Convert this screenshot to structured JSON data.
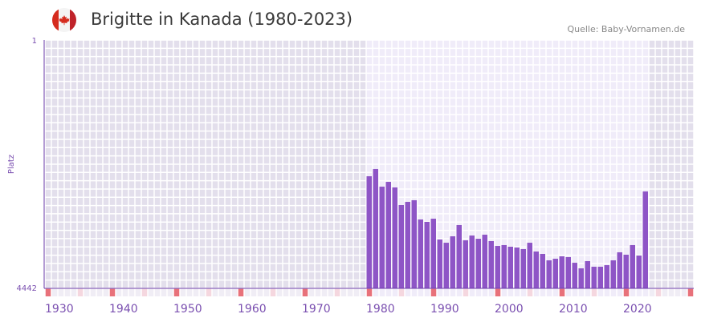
{
  "header": {
    "title": "Brigitte in Kanada (1980-2023)",
    "source": "Quelle: Baby-Vornamen.de",
    "flag_icon": "canada-flag-icon"
  },
  "colors": {
    "bar": "#8e55c6",
    "outside": "#e3dfec",
    "inside": "#f0ecf9",
    "axis": "#6a3aa8",
    "decade": "#e8717a",
    "half": "#f5d7df"
  },
  "chart_data": {
    "type": "bar",
    "title": "Brigitte in Kanada (1980-2023)",
    "ylabel": "Platz",
    "ylim": [
      4442,
      1
    ],
    "y_tick_labels": [
      "1",
      "4442"
    ],
    "xlim": [
      1930,
      2030
    ],
    "x_tick_labels": [
      "1930",
      "1940",
      "1950",
      "1960",
      "1970",
      "1980",
      "1990",
      "2000",
      "2010",
      "2020"
    ],
    "x": [
      1980,
      1981,
      1982,
      1983,
      1984,
      1985,
      1986,
      1987,
      1988,
      1989,
      1990,
      1991,
      1992,
      1993,
      1994,
      1995,
      1996,
      1997,
      1998,
      1999,
      2000,
      2001,
      2002,
      2003,
      2004,
      2005,
      2006,
      2007,
      2008,
      2009,
      2010,
      2011,
      2012,
      2013,
      2014,
      2015,
      2016,
      2017,
      2018,
      2019,
      2020,
      2021,
      2022,
      2023
    ],
    "values": [
      2437,
      2307,
      2623,
      2537,
      2637,
      2952,
      2895,
      2866,
      3210,
      3253,
      3196,
      3568,
      3626,
      3511,
      3310,
      3583,
      3497,
      3554,
      3482,
      3597,
      3683,
      3668,
      3697,
      3711,
      3740,
      3626,
      3783,
      3826,
      3941,
      3912,
      3869,
      3883,
      3984,
      4084,
      3955,
      4055,
      4055,
      4027,
      3941,
      3797,
      3840,
      3668,
      3855,
      2709
    ]
  }
}
